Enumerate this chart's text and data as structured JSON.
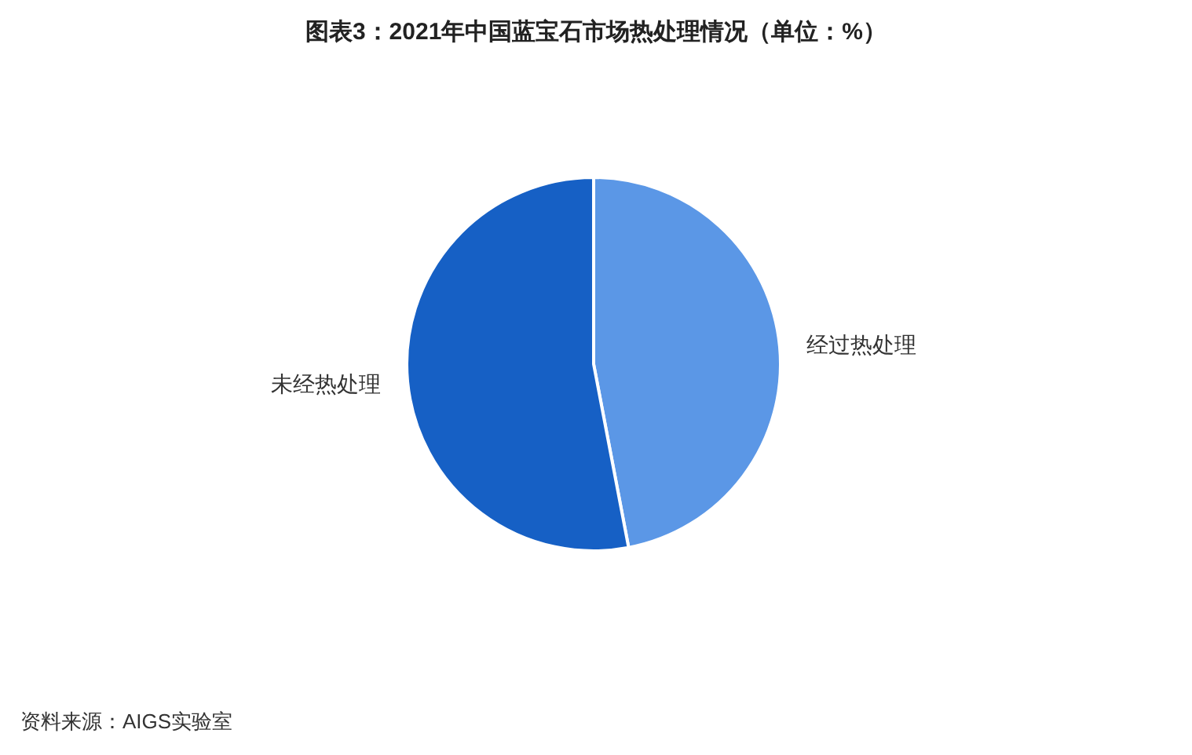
{
  "chart_data": {
    "type": "pie",
    "title": "图表3：2021年中国蓝宝石市场热处理情况（单位：%）",
    "categories": [
      "经过热处理",
      "未经热处理"
    ],
    "values": [
      47,
      53
    ],
    "colors": [
      "#5b97e6",
      "#1660c5"
    ],
    "annotations": [
      "资料来源：AIGS实验室"
    ]
  }
}
